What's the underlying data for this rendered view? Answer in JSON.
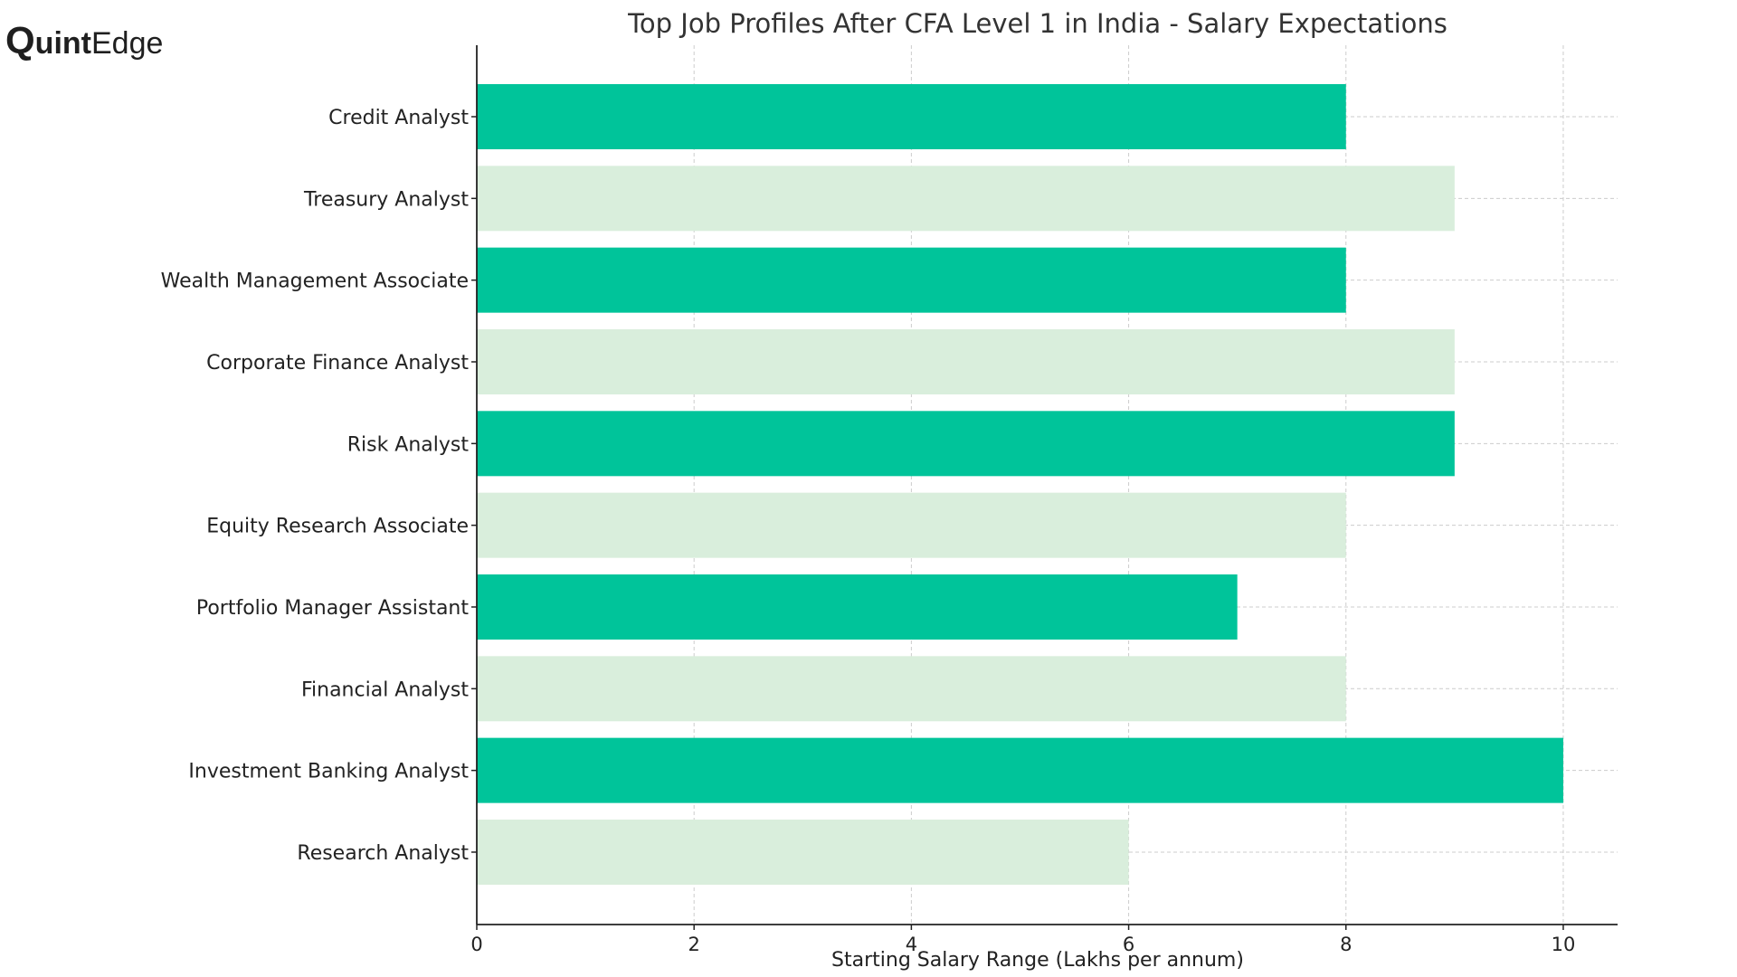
{
  "brand": {
    "logo_q": "Q",
    "logo_uint": "uint",
    "logo_edge": "Edge"
  },
  "chart_data": {
    "type": "bar",
    "orientation": "horizontal",
    "title": "Top Job Profiles After CFA Level 1 in India - Salary Expectations",
    "xlabel": "Starting Salary Range (Lakhs per annum)",
    "ylabel": "",
    "categories": [
      "Credit Analyst",
      "Treasury Analyst",
      "Wealth Management Associate",
      "Corporate Finance Analyst",
      "Risk Analyst",
      "Equity Research Associate",
      "Portfolio Manager Assistant",
      "Financial Analyst",
      "Investment Banking Analyst",
      "Research Analyst"
    ],
    "values": [
      8,
      9,
      8,
      9,
      9,
      8,
      7,
      8,
      10,
      6
    ],
    "bar_colors": [
      "#00c49a",
      "#d9eedc",
      "#00c49a",
      "#d9eedc",
      "#00c49a",
      "#d9eedc",
      "#00c49a",
      "#d9eedc",
      "#00c49a",
      "#d9eedc"
    ],
    "xlim": [
      0,
      10.5
    ],
    "xticks": [
      0,
      2,
      4,
      6,
      8,
      10
    ],
    "grid": true,
    "legend": "none"
  }
}
